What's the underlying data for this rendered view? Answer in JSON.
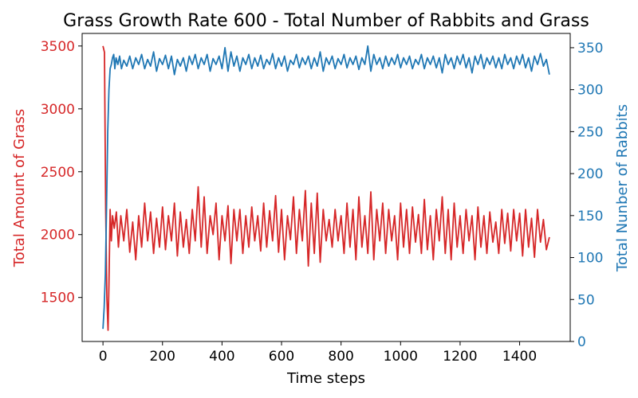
{
  "chart_data": {
    "type": "line",
    "title": "Grass Growth Rate 600 - Total Number of Rabbits and Grass",
    "xlabel": "Time steps",
    "xlim": [
      -70,
      1570
    ],
    "x_ticks": [
      0,
      200,
      400,
      600,
      800,
      1000,
      1200,
      1400
    ],
    "y_left": {
      "label": "Total Amount of Grass",
      "color": "#d62728",
      "ylim": [
        1150,
        3600
      ],
      "ticks": [
        1500,
        2000,
        2500,
        3000,
        3500
      ]
    },
    "y_right": {
      "label": "Total Nunber of Rabbits",
      "color": "#1f77b4",
      "ylim": [
        0,
        367
      ],
      "ticks": [
        0,
        50,
        100,
        150,
        200,
        250,
        300,
        350
      ]
    },
    "grid": false,
    "series": [
      {
        "axis": "left",
        "color": "#d62728",
        "points": [
          [
            0,
            3500
          ],
          [
            5,
            3450
          ],
          [
            9,
            2200
          ],
          [
            13,
            1500
          ],
          [
            17,
            1240
          ],
          [
            20,
            1600
          ],
          [
            24,
            2200
          ],
          [
            28,
            1950
          ],
          [
            32,
            2150
          ],
          [
            38,
            2050
          ],
          [
            45,
            2180
          ],
          [
            52,
            1900
          ],
          [
            60,
            2150
          ],
          [
            70,
            1950
          ],
          [
            80,
            2200
          ],
          [
            90,
            1860
          ],
          [
            100,
            2100
          ],
          [
            110,
            1800
          ],
          [
            120,
            2150
          ],
          [
            130,
            1900
          ],
          [
            140,
            2250
          ],
          [
            150,
            1950
          ],
          [
            160,
            2180
          ],
          [
            170,
            1850
          ],
          [
            180,
            2130
          ],
          [
            190,
            1900
          ],
          [
            200,
            2220
          ],
          [
            210,
            1880
          ],
          [
            220,
            2150
          ],
          [
            230,
            1950
          ],
          [
            240,
            2250
          ],
          [
            250,
            1830
          ],
          [
            260,
            2180
          ],
          [
            270,
            1900
          ],
          [
            280,
            2120
          ],
          [
            290,
            1850
          ],
          [
            300,
            2200
          ],
          [
            310,
            1950
          ],
          [
            320,
            2380
          ],
          [
            330,
            1900
          ],
          [
            340,
            2300
          ],
          [
            350,
            1850
          ],
          [
            360,
            2150
          ],
          [
            370,
            2000
          ],
          [
            380,
            2250
          ],
          [
            390,
            1800
          ],
          [
            400,
            2150
          ],
          [
            410,
            1950
          ],
          [
            420,
            2230
          ],
          [
            430,
            1770
          ],
          [
            440,
            2200
          ],
          [
            450,
            1950
          ],
          [
            460,
            2200
          ],
          [
            470,
            1850
          ],
          [
            480,
            2150
          ],
          [
            490,
            1900
          ],
          [
            500,
            2220
          ],
          [
            510,
            1950
          ],
          [
            520,
            2150
          ],
          [
            530,
            1870
          ],
          [
            540,
            2250
          ],
          [
            550,
            1900
          ],
          [
            560,
            2190
          ],
          [
            570,
            1950
          ],
          [
            580,
            2310
          ],
          [
            590,
            1860
          ],
          [
            600,
            2200
          ],
          [
            610,
            1800
          ],
          [
            620,
            2150
          ],
          [
            630,
            1960
          ],
          [
            640,
            2300
          ],
          [
            650,
            1850
          ],
          [
            660,
            2200
          ],
          [
            670,
            1950
          ],
          [
            680,
            2350
          ],
          [
            690,
            1750
          ],
          [
            700,
            2250
          ],
          [
            710,
            1850
          ],
          [
            720,
            2330
          ],
          [
            730,
            1780
          ],
          [
            740,
            2200
          ],
          [
            750,
            1950
          ],
          [
            760,
            2120
          ],
          [
            770,
            1900
          ],
          [
            780,
            2200
          ],
          [
            790,
            1950
          ],
          [
            800,
            2150
          ],
          [
            810,
            1850
          ],
          [
            820,
            2250
          ],
          [
            830,
            1900
          ],
          [
            840,
            2200
          ],
          [
            850,
            1800
          ],
          [
            860,
            2300
          ],
          [
            870,
            1900
          ],
          [
            880,
            2150
          ],
          [
            890,
            1850
          ],
          [
            900,
            2340
          ],
          [
            910,
            1800
          ],
          [
            920,
            2200
          ],
          [
            930,
            1950
          ],
          [
            940,
            2250
          ],
          [
            950,
            1850
          ],
          [
            960,
            2200
          ],
          [
            970,
            1950
          ],
          [
            980,
            2150
          ],
          [
            990,
            1800
          ],
          [
            1000,
            2250
          ],
          [
            1010,
            1900
          ],
          [
            1020,
            2200
          ],
          [
            1030,
            1850
          ],
          [
            1040,
            2220
          ],
          [
            1050,
            1940
          ],
          [
            1060,
            2160
          ],
          [
            1070,
            1850
          ],
          [
            1080,
            2280
          ],
          [
            1090,
            1880
          ],
          [
            1100,
            2150
          ],
          [
            1110,
            1800
          ],
          [
            1120,
            2200
          ],
          [
            1130,
            1950
          ],
          [
            1140,
            2300
          ],
          [
            1150,
            1850
          ],
          [
            1160,
            2200
          ],
          [
            1170,
            1800
          ],
          [
            1180,
            2250
          ],
          [
            1190,
            1900
          ],
          [
            1200,
            2150
          ],
          [
            1210,
            1850
          ],
          [
            1220,
            2200
          ],
          [
            1230,
            1950
          ],
          [
            1240,
            2150
          ],
          [
            1250,
            1800
          ],
          [
            1260,
            2220
          ],
          [
            1270,
            1900
          ],
          [
            1280,
            2150
          ],
          [
            1290,
            1850
          ],
          [
            1300,
            2180
          ],
          [
            1310,
            1940
          ],
          [
            1320,
            2100
          ],
          [
            1330,
            1850
          ],
          [
            1340,
            2200
          ],
          [
            1350,
            1930
          ],
          [
            1360,
            2170
          ],
          [
            1370,
            1870
          ],
          [
            1380,
            2200
          ],
          [
            1390,
            1950
          ],
          [
            1400,
            2170
          ],
          [
            1410,
            1830
          ],
          [
            1420,
            2200
          ],
          [
            1430,
            1900
          ],
          [
            1440,
            2130
          ],
          [
            1450,
            1820
          ],
          [
            1460,
            2200
          ],
          [
            1470,
            1940
          ],
          [
            1480,
            2120
          ],
          [
            1490,
            1880
          ],
          [
            1500,
            1980
          ]
        ]
      },
      {
        "axis": "right",
        "color": "#1f77b4",
        "points": [
          [
            0,
            15
          ],
          [
            4,
            40
          ],
          [
            8,
            80
          ],
          [
            12,
            160
          ],
          [
            16,
            250
          ],
          [
            20,
            300
          ],
          [
            24,
            325
          ],
          [
            28,
            330
          ],
          [
            32,
            338
          ],
          [
            36,
            342
          ],
          [
            40,
            325
          ],
          [
            44,
            338
          ],
          [
            50,
            330
          ],
          [
            56,
            340
          ],
          [
            62,
            325
          ],
          [
            70,
            335
          ],
          [
            80,
            328
          ],
          [
            90,
            340
          ],
          [
            100,
            325
          ],
          [
            110,
            338
          ],
          [
            120,
            330
          ],
          [
            130,
            342
          ],
          [
            140,
            325
          ],
          [
            150,
            336
          ],
          [
            160,
            328
          ],
          [
            170,
            345
          ],
          [
            180,
            322
          ],
          [
            190,
            337
          ],
          [
            200,
            330
          ],
          [
            210,
            341
          ],
          [
            220,
            325
          ],
          [
            230,
            340
          ],
          [
            240,
            318
          ],
          [
            250,
            336
          ],
          [
            260,
            328
          ],
          [
            270,
            338
          ],
          [
            280,
            322
          ],
          [
            290,
            340
          ],
          [
            300,
            330
          ],
          [
            310,
            342
          ],
          [
            320,
            325
          ],
          [
            330,
            338
          ],
          [
            340,
            330
          ],
          [
            350,
            342
          ],
          [
            360,
            322
          ],
          [
            370,
            337
          ],
          [
            380,
            330
          ],
          [
            390,
            340
          ],
          [
            400,
            325
          ],
          [
            410,
            350
          ],
          [
            420,
            322
          ],
          [
            430,
            345
          ],
          [
            440,
            328
          ],
          [
            450,
            340
          ],
          [
            460,
            322
          ],
          [
            470,
            338
          ],
          [
            480,
            330
          ],
          [
            490,
            342
          ],
          [
            500,
            325
          ],
          [
            510,
            338
          ],
          [
            520,
            328
          ],
          [
            530,
            341
          ],
          [
            540,
            325
          ],
          [
            550,
            336
          ],
          [
            560,
            330
          ],
          [
            570,
            343
          ],
          [
            580,
            325
          ],
          [
            590,
            338
          ],
          [
            600,
            328
          ],
          [
            610,
            340
          ],
          [
            620,
            322
          ],
          [
            630,
            335
          ],
          [
            640,
            330
          ],
          [
            650,
            342
          ],
          [
            660,
            326
          ],
          [
            670,
            338
          ],
          [
            680,
            330
          ],
          [
            690,
            340
          ],
          [
            700,
            325
          ],
          [
            710,
            338
          ],
          [
            720,
            328
          ],
          [
            730,
            345
          ],
          [
            740,
            322
          ],
          [
            750,
            338
          ],
          [
            760,
            330
          ],
          [
            770,
            340
          ],
          [
            780,
            325
          ],
          [
            790,
            337
          ],
          [
            800,
            330
          ],
          [
            810,
            342
          ],
          [
            820,
            326
          ],
          [
            830,
            338
          ],
          [
            840,
            330
          ],
          [
            850,
            340
          ],
          [
            860,
            324
          ],
          [
            870,
            338
          ],
          [
            880,
            330
          ],
          [
            890,
            352
          ],
          [
            900,
            322
          ],
          [
            910,
            342
          ],
          [
            920,
            330
          ],
          [
            930,
            338
          ],
          [
            940,
            325
          ],
          [
            950,
            340
          ],
          [
            960,
            328
          ],
          [
            970,
            338
          ],
          [
            980,
            330
          ],
          [
            990,
            342
          ],
          [
            1000,
            326
          ],
          [
            1010,
            338
          ],
          [
            1020,
            330
          ],
          [
            1030,
            340
          ],
          [
            1040,
            325
          ],
          [
            1050,
            336
          ],
          [
            1060,
            330
          ],
          [
            1070,
            342
          ],
          [
            1080,
            325
          ],
          [
            1090,
            338
          ],
          [
            1100,
            330
          ],
          [
            1110,
            340
          ],
          [
            1120,
            326
          ],
          [
            1130,
            338
          ],
          [
            1140,
            320
          ],
          [
            1150,
            342
          ],
          [
            1160,
            330
          ],
          [
            1170,
            338
          ],
          [
            1180,
            325
          ],
          [
            1190,
            340
          ],
          [
            1200,
            330
          ],
          [
            1210,
            342
          ],
          [
            1220,
            326
          ],
          [
            1230,
            338
          ],
          [
            1240,
            320
          ],
          [
            1250,
            340
          ],
          [
            1260,
            330
          ],
          [
            1270,
            342
          ],
          [
            1280,
            325
          ],
          [
            1290,
            338
          ],
          [
            1300,
            330
          ],
          [
            1310,
            340
          ],
          [
            1320,
            326
          ],
          [
            1330,
            338
          ],
          [
            1340,
            325
          ],
          [
            1350,
            342
          ],
          [
            1360,
            330
          ],
          [
            1370,
            338
          ],
          [
            1380,
            325
          ],
          [
            1390,
            340
          ],
          [
            1400,
            330
          ],
          [
            1410,
            342
          ],
          [
            1420,
            326
          ],
          [
            1430,
            338
          ],
          [
            1440,
            322
          ],
          [
            1450,
            340
          ],
          [
            1460,
            330
          ],
          [
            1470,
            343
          ],
          [
            1480,
            328
          ],
          [
            1490,
            336
          ],
          [
            1500,
            318
          ]
        ]
      }
    ]
  }
}
